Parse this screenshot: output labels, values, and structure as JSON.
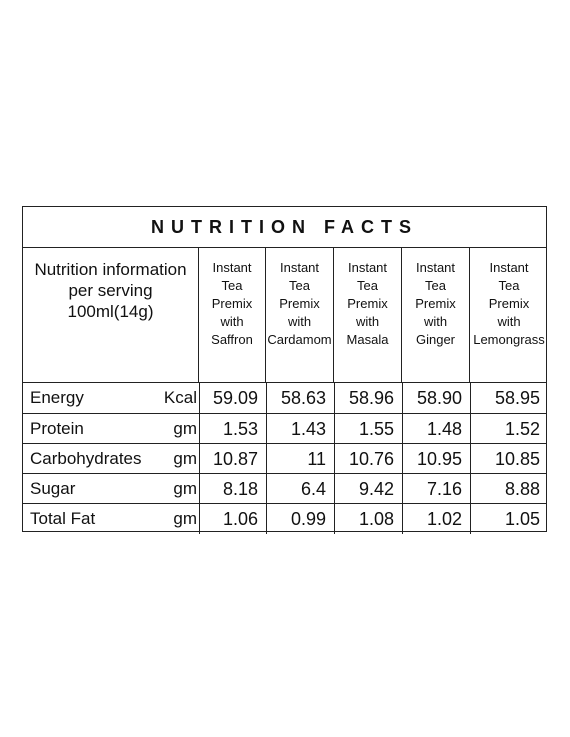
{
  "title": "NUTRITION FACTS",
  "info_lines": [
    "Nutrition information",
    "per serving",
    "100ml(14g)"
  ],
  "columns": [
    [
      "Instant",
      "Tea",
      "Premix",
      "with",
      "Saffron"
    ],
    [
      "Instant",
      "Tea",
      "Premix",
      "with",
      "Cardamom"
    ],
    [
      "Instant",
      "Tea",
      "Premix",
      "with",
      "Masala"
    ],
    [
      "Instant",
      "Tea",
      "Premix",
      "with",
      "Ginger"
    ],
    [
      "Instant",
      "Tea",
      "Premix",
      "with",
      "Lemongrass"
    ]
  ],
  "rows": [
    {
      "name": "Energy",
      "unit": "Kcal",
      "values": [
        "59.09",
        "58.63",
        "58.96",
        "58.90",
        "58.95"
      ]
    },
    {
      "name": "Protein",
      "unit": "gm",
      "values": [
        "1.53",
        "1.43",
        "1.55",
        "1.48",
        "1.52"
      ]
    },
    {
      "name": "Carbohydrates",
      "unit": "gm",
      "values": [
        "10.87",
        "11",
        "10.76",
        "10.95",
        "10.85"
      ]
    },
    {
      "name": "Sugar",
      "unit": "gm",
      "values": [
        "8.18",
        "6.4",
        "9.42",
        "7.16",
        "8.88"
      ]
    },
    {
      "name": "Total Fat",
      "unit": "gm",
      "values": [
        "1.06",
        "0.99",
        "1.08",
        "1.02",
        "1.05"
      ]
    }
  ]
}
